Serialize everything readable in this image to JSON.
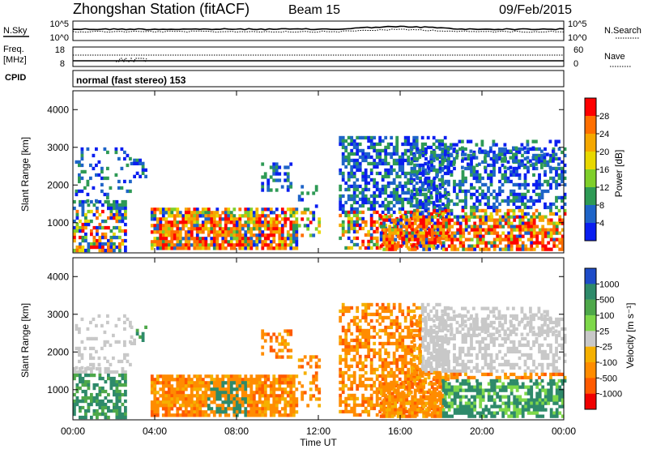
{
  "header": {
    "station": "Zhongshan Station (fitACF)",
    "beam": "Beam 15",
    "date": "09/Feb/2015"
  },
  "top_panels": {
    "nsky_label": "N.Sky",
    "nsearch_label": "N.Search",
    "nsky_ticks": [
      "10^5",
      "10^0"
    ],
    "nsearch_ticks": [
      "10^5",
      "10^0"
    ],
    "freq_label_1": "Freq.",
    "freq_label_2": "[MHz]",
    "freq_ticks": [
      "18",
      "8"
    ],
    "nave_label": "Nave",
    "nave_ticks": [
      "60",
      "0"
    ],
    "cpid_label": "CPID",
    "cpid_text": "normal (fast stereo) 153"
  },
  "colorbars": {
    "power": {
      "title": "Power [dB]",
      "labels": [
        "28",
        "24",
        "20",
        "16",
        "12",
        "8",
        "4"
      ],
      "colors": [
        "#ff0000",
        "#ff6f00",
        "#f5a800",
        "#e8d800",
        "#7fcf2a",
        "#2e9a55",
        "#1e64c8",
        "#0a1ef0"
      ]
    },
    "velocity": {
      "title": "Velocity [m s⁻¹]",
      "labels": [
        "1000",
        "500",
        "100",
        "25",
        "-25",
        "-100",
        "-500",
        "-1000"
      ],
      "colors": [
        "#1e4cc8",
        "#2e8a6a",
        "#4ea84a",
        "#7ed84a",
        "#c8c8c8",
        "#f5b000",
        "#ff8c00",
        "#ff5a00",
        "#f00000"
      ]
    }
  },
  "chart_data": [
    {
      "type": "heatmap",
      "name": "power",
      "ylabel": "Slant Range [km]",
      "yticks": [
        "4000",
        "3000",
        "2000",
        "1000"
      ],
      "ylim": [
        200,
        4500
      ],
      "xlim": [
        0,
        24
      ],
      "colorbar": "Power [dB]"
    },
    {
      "type": "heatmap",
      "name": "velocity",
      "ylabel": "Slant Range [km]",
      "yticks": [
        "4000",
        "3000",
        "2000",
        "1000"
      ],
      "ylim": [
        200,
        4500
      ],
      "xlim": [
        0,
        24
      ],
      "colorbar": "Velocity [m s⁻¹]"
    }
  ],
  "xaxis": {
    "label": "Time UT",
    "ticks": [
      "00:00",
      "04:00",
      "08:00",
      "12:00",
      "16:00",
      "20:00",
      "00:00"
    ]
  }
}
